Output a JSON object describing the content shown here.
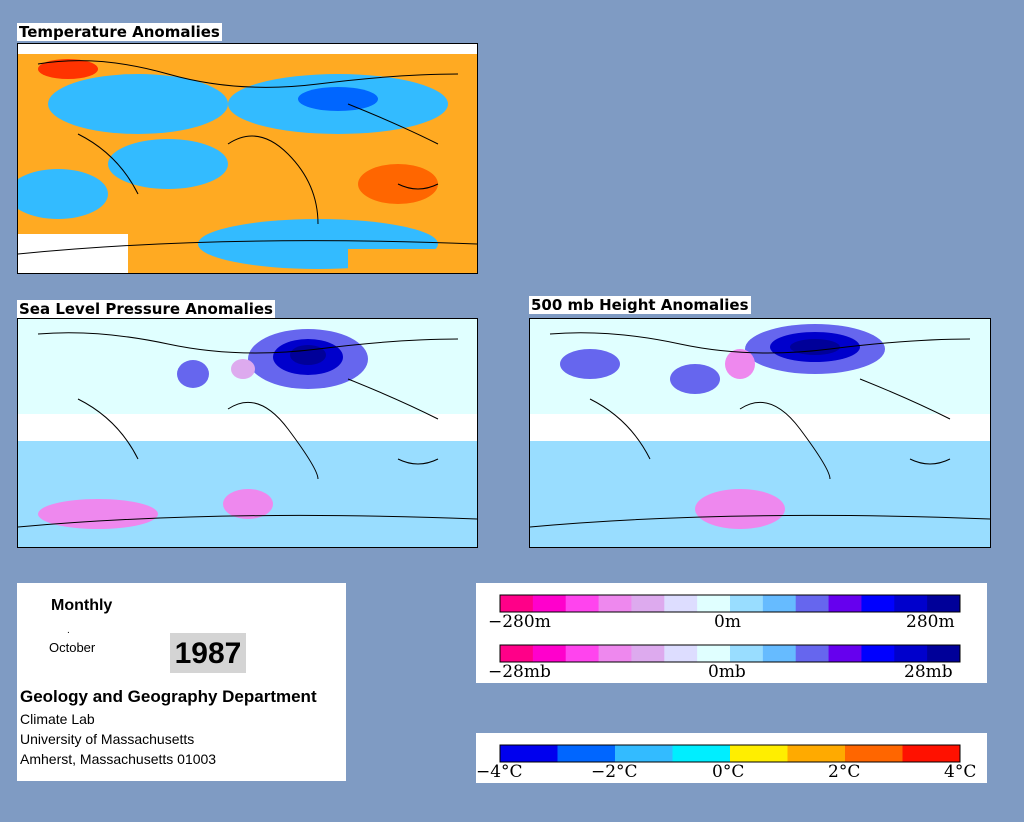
{
  "panels": {
    "temperature": {
      "title": "Temperature Anomalies"
    },
    "slp": {
      "title": "Sea Level Pressure Anomalies"
    },
    "height": {
      "title": "500 mb Height Anomalies"
    }
  },
  "info": {
    "mode": "Monthly",
    "dot": ".",
    "month": "October",
    "year": "1987",
    "department": "Geology and Geography Department",
    "lab": "Climate Lab",
    "university": "University of Massachusetts",
    "address": "Amherst, Massachusetts 01003"
  },
  "scales": {
    "height": {
      "min_label": "−280m",
      "mid_label": "0m",
      "max_label": "280m"
    },
    "pressure": {
      "min_label": "−28mb",
      "mid_label": "0mb",
      "max_label": "28mb"
    },
    "temperature": {
      "labels": [
        "−4°C",
        "−2°C",
        "0°C",
        "2°C",
        "4°C"
      ],
      "colors": [
        "#0000ee",
        "#0066ff",
        "#33bbff",
        "#00eeff",
        "#ffee00",
        "#ffaa00",
        "#ff6600",
        "#ff1100"
      ]
    },
    "anomaly_colors": [
      "#ff0088",
      "#ff00cc",
      "#ff44ee",
      "#ee88ee",
      "#ddaaee",
      "#ddddff",
      "#e0ffff",
      "#99ddff",
      "#66bbff",
      "#6666ee",
      "#6600ee",
      "#0000ff",
      "#0000cc",
      "#000099"
    ]
  },
  "colors": {
    "background": "#7f9bc3",
    "warm": "#ffaa22",
    "cool": "#33bbff",
    "negative": "#ff00aa",
    "positive": "#0000cc",
    "land_outline": "#000000"
  }
}
